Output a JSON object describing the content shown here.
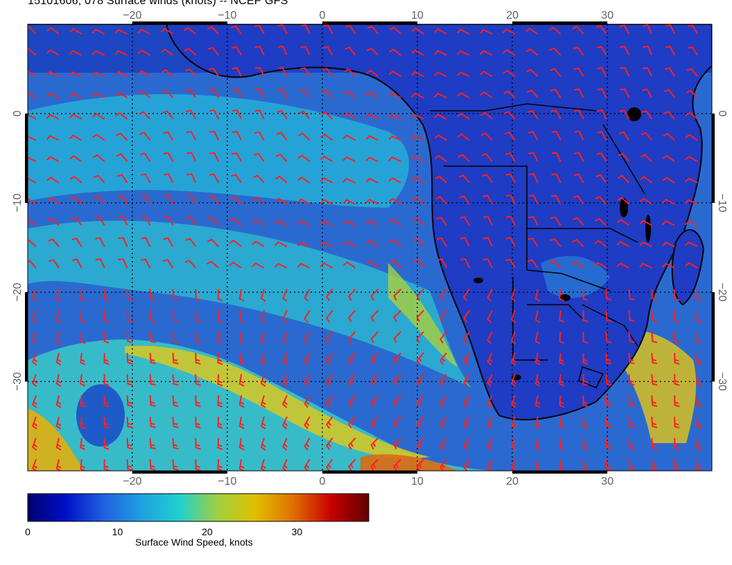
{
  "title": "15101606, 078 Surface winds (knots) -- NCEP GFS",
  "map": {
    "region": "Southern Africa and South Atlantic",
    "lon_range": [
      -31,
      41
    ],
    "lat_range": [
      -40,
      10
    ],
    "lon_ticks": [
      -20,
      -10,
      0,
      10,
      20,
      30
    ],
    "lat_ticks": [
      0,
      -10,
      -20,
      -30
    ],
    "lon_tick_labels": [
      "−20",
      "−10",
      "0",
      "10",
      "20",
      "30"
    ],
    "lat_tick_labels": [
      "0",
      "−10",
      "−20",
      "−30"
    ],
    "ocean_color": "#2f6fd8",
    "land_color": "#2040c8",
    "barb_color": "#ff2020",
    "coast_color": "#000000"
  },
  "colorbar": {
    "label": "Surface Wind Speed, knots",
    "min": 0,
    "max": 38,
    "ticks": [
      0,
      10,
      20,
      30
    ],
    "tick_labels": [
      "0",
      "10",
      "20",
      "30"
    ],
    "colors": [
      "#00006e",
      "#0010c8",
      "#2060e0",
      "#20a0e0",
      "#20d0d0",
      "#a0d040",
      "#e0c000",
      "#e07000",
      "#c80000",
      "#600000"
    ]
  }
}
